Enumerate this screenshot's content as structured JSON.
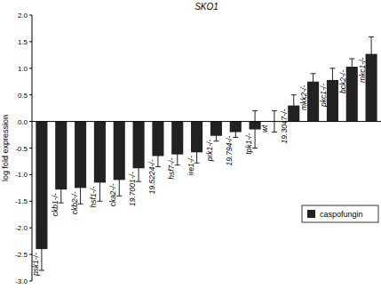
{
  "chart_data": {
    "type": "bar",
    "title": "SKO1",
    "y_label": "log fold expression",
    "categories": [
      "psk1-/-",
      "ckb1-/-",
      "ckb2-/-",
      "hsf1-/-",
      "cka2-/-",
      "19.7001-/-",
      "19.5224-/-",
      "hsf7-/-",
      "ire1-/-",
      "prk1-/-",
      "19.794-/-",
      "tpk1-/-",
      "wt",
      "19.3047-/-",
      "mkk2-/-",
      "pkc1-/-",
      "bck2-/-",
      "mkc1-/-"
    ],
    "series": [
      {
        "name": "caspofungin",
        "color": "#222222",
        "values": [
          -2.4,
          -1.28,
          -1.25,
          -1.15,
          -1.1,
          -0.88,
          -0.65,
          -0.62,
          -0.58,
          -0.27,
          -0.2,
          -0.15,
          0,
          0.3,
          0.75,
          0.78,
          1.03,
          1.27
        ],
        "errors": [
          0.4,
          0.25,
          0.3,
          0.35,
          0.3,
          0.25,
          0.2,
          0.2,
          0.2,
          0.1,
          0.1,
          0.35,
          0.2,
          0.2,
          0.15,
          0.22,
          0.15,
          0.32
        ]
      }
    ],
    "ylim": [
      -3,
      2
    ],
    "yticks": [
      {
        "value": -3,
        "label": "-3.0"
      },
      {
        "value": -2.5,
        "label": "-2.5"
      },
      {
        "value": -2,
        "label": "-2.0"
      },
      {
        "value": -1.5,
        "label": "-1.5"
      },
      {
        "value": -1,
        "label": "-1.0"
      },
      {
        "value": -0.5,
        "label": "-0.5"
      },
      {
        "value": 0,
        "label": "0.0"
      },
      {
        "value": 0.5,
        "label": "0.5"
      },
      {
        "value": 1,
        "label": "1.0"
      },
      {
        "value": 1.5,
        "label": "1.5"
      },
      {
        "value": 2,
        "label": "2.0"
      }
    ],
    "grid": false,
    "legend": "right"
  }
}
